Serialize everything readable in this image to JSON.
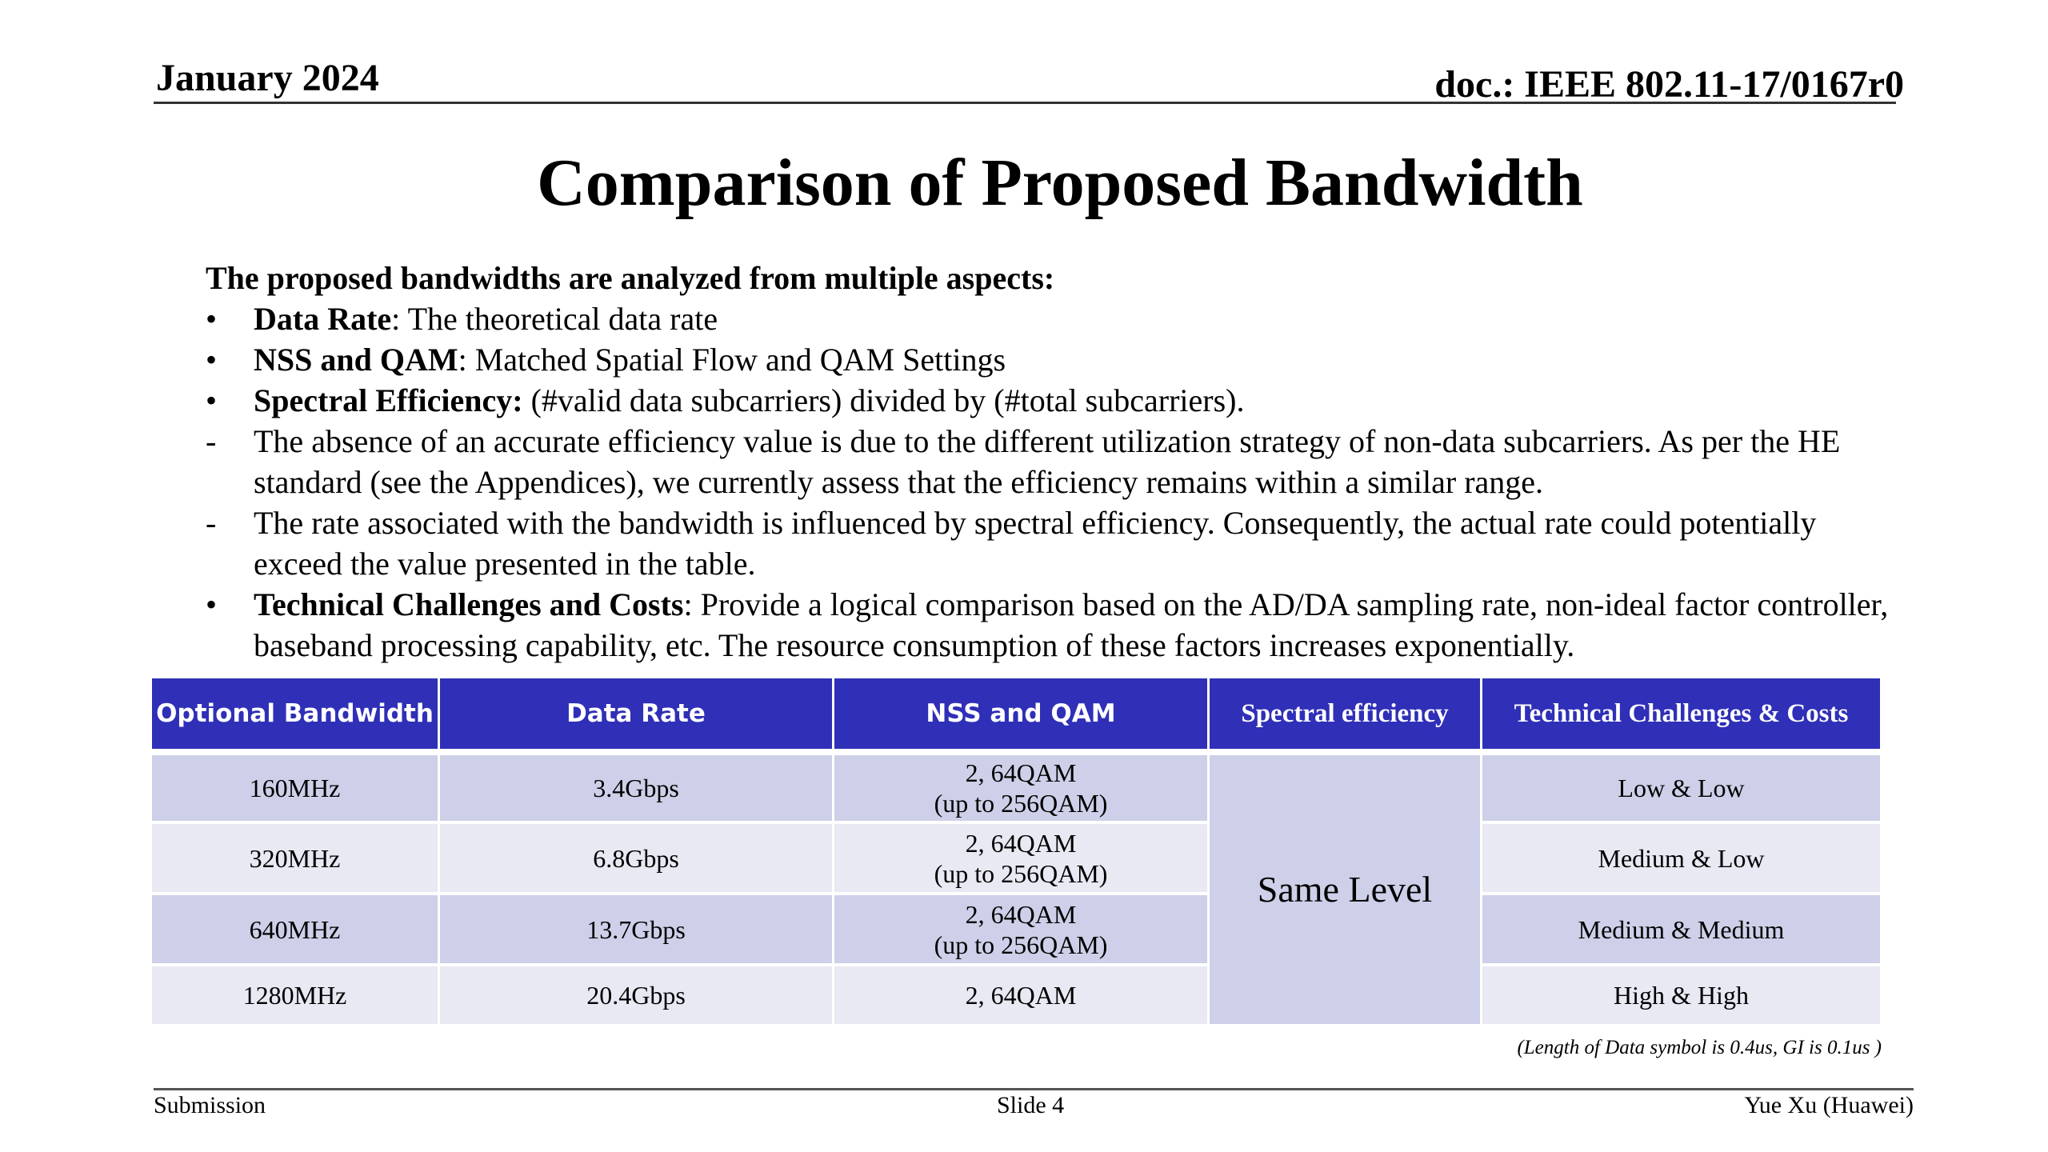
{
  "header": {
    "date": "January 2024",
    "doc": "doc.: IEEE 802.11-17/0167r0"
  },
  "title": "Comparison of Proposed Bandwidth",
  "body": {
    "intro": "The proposed bandwidths are analyzed from multiple aspects:",
    "items": [
      {
        "marker": "•",
        "bold": "Data Rate",
        "text": ": The theoretical data rate"
      },
      {
        "marker": "•",
        "bold": "NSS and QAM",
        "text": ": Matched Spatial Flow and QAM Settings"
      },
      {
        "marker": "•",
        "bold": "Spectral Efficiency:",
        "text": " (#valid data subcarriers) divided by (#total subcarriers)."
      },
      {
        "marker": "-",
        "bold": "",
        "text": "The absence of an accurate efficiency value is due to the different utilization strategy of non-data subcarriers. As per the HE standard (see the Appendices), we currently assess that the efficiency remains within a similar range."
      },
      {
        "marker": "-",
        "bold": "",
        "text": "The rate associated with the bandwidth is influenced by spectral efficiency. Consequently, the actual rate could potentially exceed the value presented in the table."
      },
      {
        "marker": "•",
        "bold": "Technical Challenges and Costs",
        "text": ": Provide a logical comparison based on the AD/DA sampling rate, non-ideal factor controller, baseband processing capability, etc. The resource consumption of these factors increases exponentially."
      }
    ]
  },
  "table": {
    "headers": [
      "Optional Bandwidth",
      "Data Rate",
      "NSS and QAM",
      "Spectral efficiency",
      "Technical Challenges & Costs"
    ],
    "rows": [
      {
        "bw": "160MHz",
        "rate": "3.4Gbps",
        "nss": "2, 64QAM",
        "nss2": "(up to 256QAM)",
        "cost": "Low & Low"
      },
      {
        "bw": "320MHz",
        "rate": "6.8Gbps",
        "nss": "2, 64QAM",
        "nss2": "(up to 256QAM)",
        "cost": "Medium & Low"
      },
      {
        "bw": "640MHz",
        "rate": "13.7Gbps",
        "nss": "2, 64QAM",
        "nss2": "(up to 256QAM)",
        "cost": "Medium & Medium"
      },
      {
        "bw": "1280MHz",
        "rate": "20.4Gbps",
        "nss": "2, 64QAM",
        "nss2": "",
        "cost": "High & High"
      }
    ],
    "spectral": "Same Level",
    "header_color": "#2f2fb8",
    "note": "(Length of Data symbol is 0.4us, GI is 0.1us )"
  },
  "footer": {
    "left": "Submission",
    "center": "Slide 4",
    "right": "Yue Xu (Huawei)"
  }
}
